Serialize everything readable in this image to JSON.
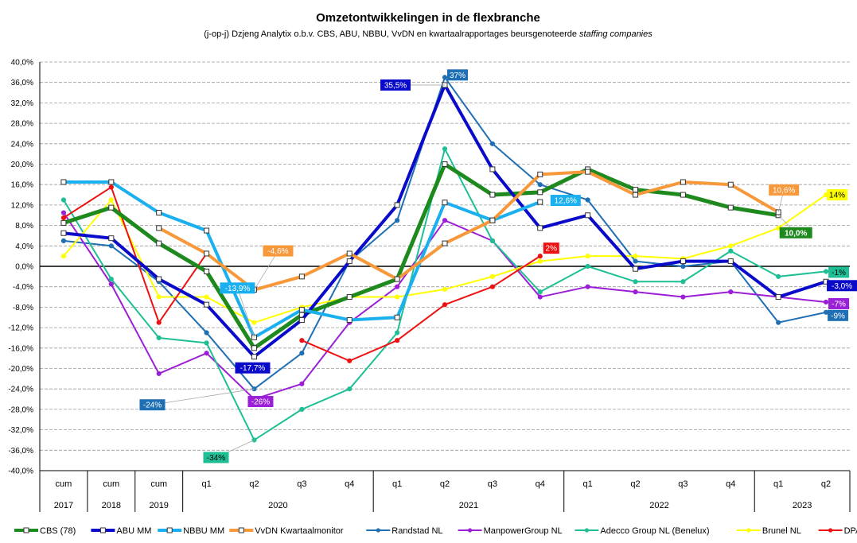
{
  "title": "Omzetontwikkelingen in de flexbranche",
  "subtitle_main": "(j-op-j) Dzjeng Analytix o.b.v. CBS, ABU, NBBU, VvDN en kwartaalrapportages beursgenoteerde ",
  "subtitle_italic": "staffing companies",
  "chart_data": {
    "type": "line",
    "categories": [
      "cum",
      "cum",
      "cum",
      "q1",
      "q2",
      "q3",
      "q4",
      "q1",
      "q2",
      "q3",
      "q4",
      "q1",
      "q2",
      "q3",
      "q4",
      "q1",
      "q2"
    ],
    "groups": [
      {
        "label": "2017",
        "span": 1
      },
      {
        "label": "2018",
        "span": 1
      },
      {
        "label": "2019",
        "span": 1
      },
      {
        "label": "2020",
        "span": 4
      },
      {
        "label": "2021",
        "span": 4
      },
      {
        "label": "2022",
        "span": 4
      },
      {
        "label": "2023",
        "span": 2
      }
    ],
    "ylim": [
      -40,
      40
    ],
    "yticks": [
      "40,0%",
      "36,0%",
      "32,0%",
      "28,0%",
      "24,0%",
      "20,0%",
      "16,0%",
      "12,0%",
      "8,0%",
      "4,0%",
      "0,0%",
      "-4,0%",
      "-8,0%",
      "-12,0%",
      "-16,0%",
      "-20,0%",
      "-24,0%",
      "-28,0%",
      "-32,0%",
      "-36,0%",
      "-40,0%"
    ],
    "grid": true,
    "legend_position": "bottom",
    "series": [
      {
        "name": "Randstad NL",
        "color": "#1f6fb4",
        "width": 2,
        "marker": "circle",
        "values": [
          5,
          4,
          -3,
          -13,
          -24,
          -17,
          1,
          9,
          37,
          24,
          16,
          13,
          1,
          0,
          1,
          -11,
          -9
        ]
      },
      {
        "name": "ManpowerGroup NL",
        "color": "#9b1fd6",
        "width": 2,
        "marker": "circle",
        "values": [
          10.5,
          -3.5,
          -21,
          -17,
          -26,
          -23,
          -11,
          -4,
          9,
          5,
          -6,
          -4,
          -5,
          -6,
          -5,
          -6,
          -7
        ]
      },
      {
        "name": "Adecco Group NL (Benelux)",
        "color": "#1fbf95",
        "width": 2,
        "marker": "circle",
        "values": [
          13,
          -2.5,
          -14,
          -15,
          -34,
          -28,
          -24,
          -13,
          23,
          5,
          -5,
          0,
          -3,
          -3,
          3,
          -2,
          -1
        ]
      },
      {
        "name": "Brunel NL",
        "color": "#ffff00",
        "width": 2,
        "marker": "circle",
        "values": [
          2,
          13,
          -6,
          -6,
          -11,
          -8,
          -6,
          -6,
          -4.5,
          -2,
          1,
          2,
          2,
          1.5,
          4,
          7.5,
          14
        ]
      },
      {
        "name": "DPA Prof's NL",
        "color": "#ee1111",
        "width": 2,
        "marker": "circle",
        "values": [
          9.5,
          15.5,
          -11,
          2.5,
          null,
          -14.5,
          -18.5,
          -14.5,
          -7.5,
          -4,
          2,
          null,
          null,
          null,
          null,
          null,
          null
        ]
      },
      {
        "name": "CBS (78)",
        "color": "#1e8a1e",
        "width": 5,
        "marker": "square",
        "values": [
          8.5,
          11.5,
          4.5,
          -1,
          -16,
          -9.5,
          -6,
          -2.5,
          20,
          14,
          14.5,
          19,
          15,
          14,
          11.5,
          10,
          null
        ]
      },
      {
        "name": "ABU MM",
        "color": "#0a0acb",
        "width": 4,
        "marker": "square",
        "values": [
          6.5,
          5.5,
          -2.5,
          -7.5,
          -17.7,
          -10.5,
          1,
          12,
          35.5,
          19,
          7.5,
          10,
          -0.5,
          1,
          1,
          -6,
          -3
        ]
      },
      {
        "name": "NBBU MM",
        "color": "#1ab0ef",
        "width": 4,
        "marker": "square",
        "values": [
          16.5,
          16.5,
          10.5,
          7,
          -13.9,
          -8.5,
          -10.5,
          -10,
          12.5,
          9,
          12.6,
          null,
          null,
          null,
          null,
          null,
          null
        ]
      },
      {
        "name": "VvDN Kwartaalmonitor",
        "color": "#f7983a",
        "width": 4,
        "marker": "square",
        "values": [
          null,
          null,
          7.5,
          2.5,
          -4.6,
          -2,
          2.5,
          -2.5,
          4.5,
          9,
          18,
          18.5,
          14,
          16.5,
          16,
          10.6,
          null
        ]
      }
    ],
    "data_labels": [
      {
        "text": "-24%",
        "series": "Randstad NL",
        "index": 4,
        "bg": "#1f6fb4",
        "fg": "#ffffff"
      },
      {
        "text": "37%",
        "series": "Randstad NL",
        "index": 8,
        "bg": "#1f6fb4",
        "fg": "#ffffff"
      },
      {
        "text": "-9%",
        "series": "Randstad NL",
        "index": 16,
        "bg": "#1f6fb4",
        "fg": "#ffffff"
      },
      {
        "text": "-26%",
        "series": "ManpowerGroup NL",
        "index": 4,
        "bg": "#9b1fd6",
        "fg": "#ffffff"
      },
      {
        "text": "-7%",
        "series": "ManpowerGroup NL",
        "index": 16,
        "bg": "#9b1fd6",
        "fg": "#ffffff"
      },
      {
        "text": "-34%",
        "series": "Adecco Group NL (Benelux)",
        "index": 4,
        "bg": "#1fbf95",
        "fg": "#000000"
      },
      {
        "text": "-1%",
        "series": "Adecco Group NL (Benelux)",
        "index": 16,
        "bg": "#1fbf95",
        "fg": "#000000"
      },
      {
        "text": "14%",
        "series": "Brunel NL",
        "index": 16,
        "bg": "#ffff00",
        "fg": "#000000"
      },
      {
        "text": "2%",
        "series": "DPA Prof's NL",
        "index": 10,
        "bg": "#ee1111",
        "fg": "#ffffff"
      },
      {
        "text": "10,0%",
        "series": "CBS (78)",
        "index": 15,
        "bg": "#1e8a1e",
        "fg": "#ffffff"
      },
      {
        "text": "-17,7%",
        "series": "ABU MM",
        "index": 4,
        "bg": "#0a0acb",
        "fg": "#ffffff"
      },
      {
        "text": "35,5%",
        "series": "ABU MM",
        "index": 8,
        "bg": "#0a0acb",
        "fg": "#ffffff"
      },
      {
        "text": "-3,0%",
        "series": "ABU MM",
        "index": 16,
        "bg": "#0a0acb",
        "fg": "#ffffff"
      },
      {
        "text": "-13,9%",
        "series": "NBBU MM",
        "index": 4,
        "bg": "#1ab0ef",
        "fg": "#ffffff"
      },
      {
        "text": "12,6%",
        "series": "NBBU MM",
        "index": 10,
        "bg": "#1ab0ef",
        "fg": "#ffffff"
      },
      {
        "text": "-4,6%",
        "series": "VvDN Kwartaalmonitor",
        "index": 4,
        "bg": "#f7983a",
        "fg": "#ffffff"
      },
      {
        "text": "10,6%",
        "series": "VvDN Kwartaalmonitor",
        "index": 15,
        "bg": "#f7983a",
        "fg": "#ffffff"
      }
    ],
    "legend": [
      {
        "name": "CBS (78)",
        "color": "#1e8a1e"
      },
      {
        "name": "ABU MM",
        "color": "#0a0acb"
      },
      {
        "name": "NBBU MM",
        "color": "#1ab0ef"
      },
      {
        "name": "VvDN Kwartaalmonitor",
        "color": "#f7983a"
      },
      {
        "name": "Randstad NL",
        "color": "#1f6fb4"
      },
      {
        "name": "ManpowerGroup NL",
        "color": "#9b1fd6"
      },
      {
        "name": "Adecco Group NL (Benelux)",
        "color": "#1fbf95"
      },
      {
        "name": "Brunel NL",
        "color": "#ffff00"
      },
      {
        "name": "DPA Prof's NL",
        "color": "#ee1111"
      }
    ]
  }
}
